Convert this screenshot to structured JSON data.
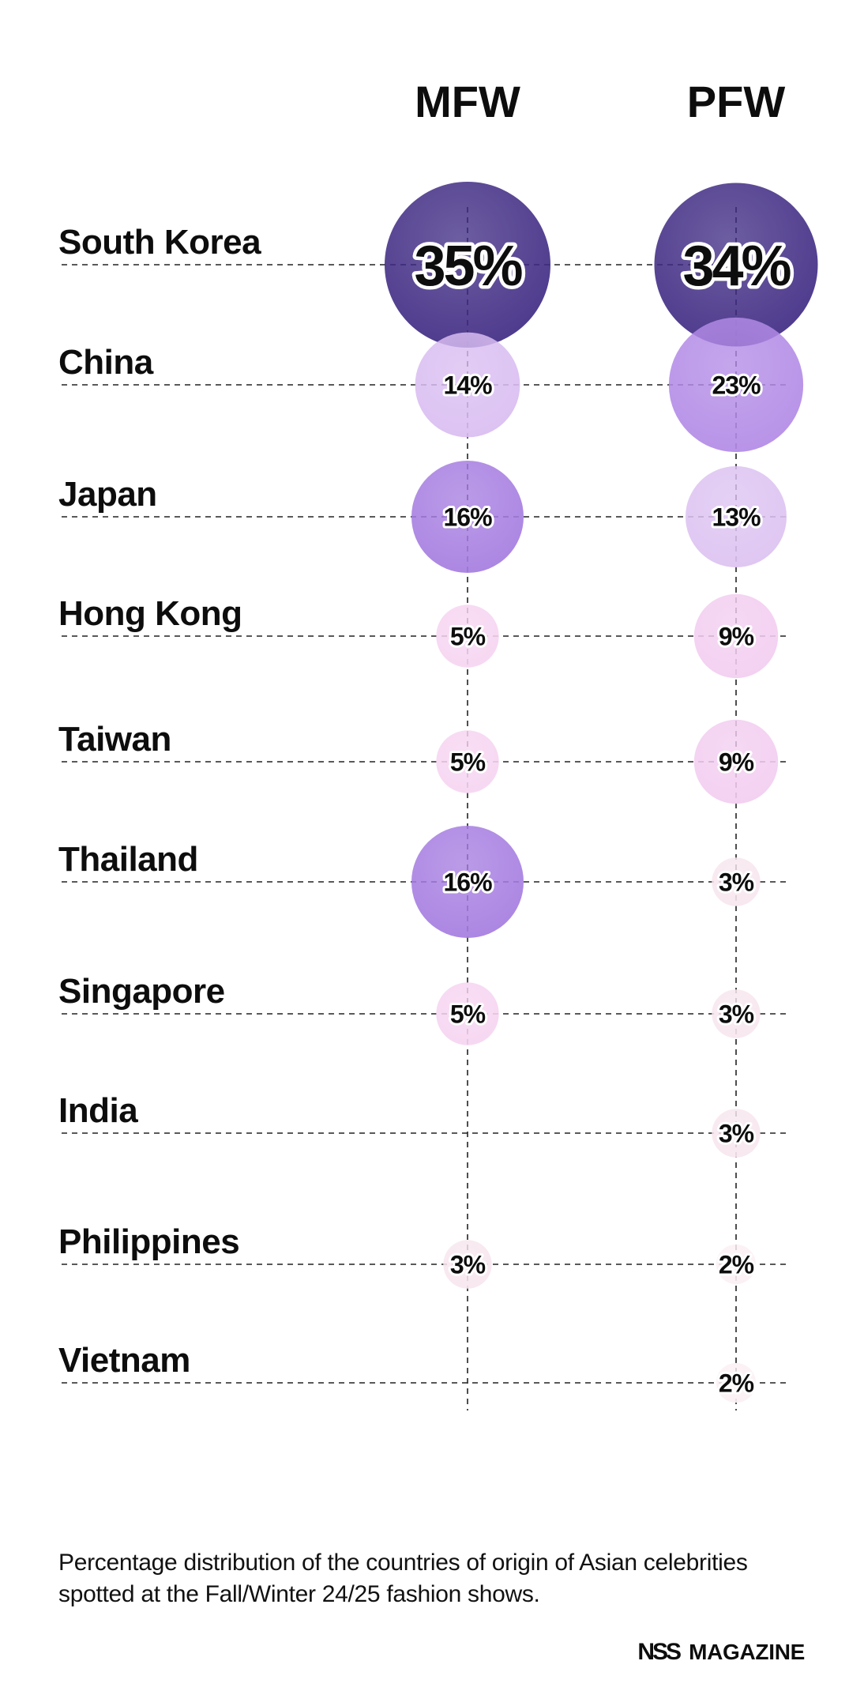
{
  "chart_data": {
    "type": "bubble",
    "columns": [
      "MFW",
      "PFW"
    ],
    "categories": [
      "South Korea",
      "China",
      "Japan",
      "Hong Kong",
      "Taiwan",
      "Thailand",
      "Singapore",
      "India",
      "Philippines",
      "Vietnam"
    ],
    "series": [
      {
        "name": "MFW",
        "values": [
          35,
          14,
          16,
          5,
          5,
          16,
          5,
          null,
          3,
          null
        ],
        "labels": [
          "35%",
          "14%",
          "16%",
          "5%",
          "5%",
          "16%",
          "5%",
          "",
          "3%",
          ""
        ]
      },
      {
        "name": "PFW",
        "values": [
          34,
          23,
          13,
          9,
          9,
          3,
          3,
          3,
          2,
          2
        ],
        "labels": [
          "34%",
          "23%",
          "13%",
          "9%",
          "9%",
          "3%",
          "3%",
          "3%",
          "2%",
          "2%"
        ]
      }
    ],
    "unit": "%",
    "grid": true,
    "colors": {
      "35": "#3f2a83",
      "34": "#3f2a83",
      "23": "#b28ae6",
      "16": "#a57ce0",
      "14": "#d9bdf1",
      "13": "#dcc2f1",
      "9": "#f2cdf0",
      "5": "#f6d4f1",
      "3": "#f7e6ee",
      "2": "#fbf0f4"
    }
  },
  "caption": "Percentage distribution of the countries of origin of Asian celebrities spotted at the Fall/Winter 24/25 fashion shows.",
  "brand": {
    "mark": "NSS",
    "name": "MAGAZINE"
  }
}
